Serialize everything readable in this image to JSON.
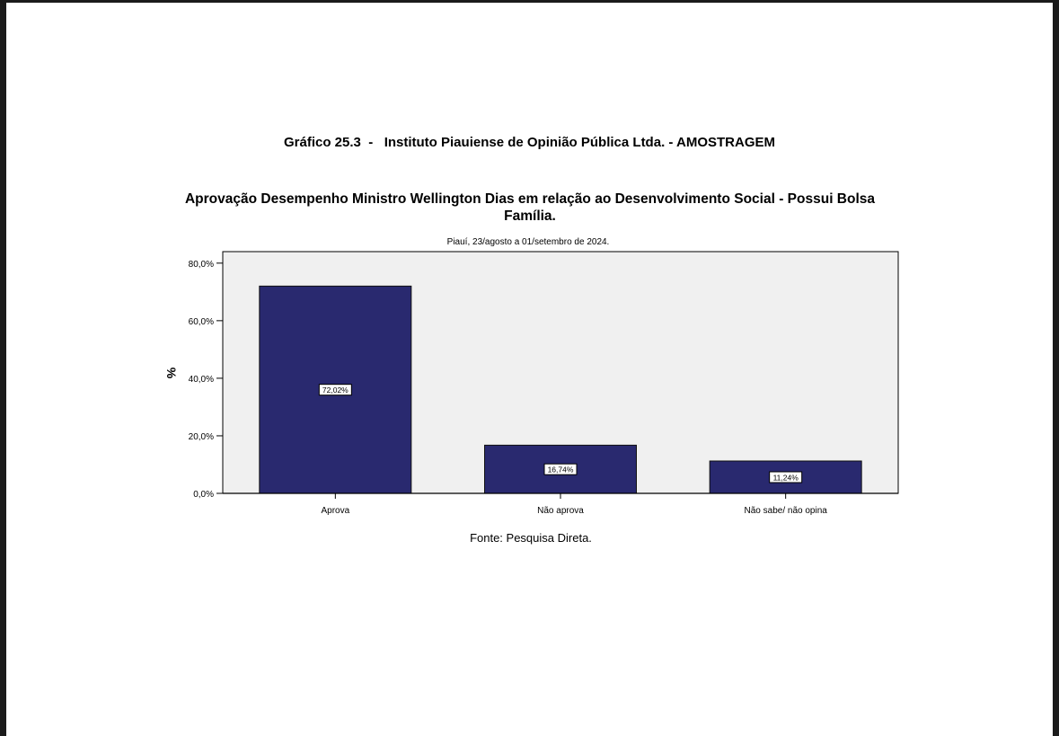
{
  "header": "Gráfico 25.3  -   Instituto Piauiense de Opinião Pública Ltda. - AMOSTRAGEM",
  "footer": "Fonte: Pesquisa Direta.",
  "chart_data": {
    "type": "bar",
    "title": "Aprovação Desempenho Ministro Wellington Dias em relação ao Desenvolvimento Social - Possui Bolsa Família.",
    "subtitle": "Piauí, 23/agosto a 01/setembro de 2024.",
    "xlabel": "",
    "ylabel": "%",
    "categories": [
      "Aprova",
      "Não aprova",
      "Não sabe/ não opina"
    ],
    "values": [
      72.02,
      16.74,
      11.24
    ],
    "data_labels": [
      "72,02%",
      "16,74%",
      "11,24%"
    ],
    "yticks": [
      0,
      20,
      40,
      60,
      80
    ],
    "ytick_labels": [
      "0,0%",
      "20,0%",
      "40,0%",
      "60,0%",
      "80,0%"
    ],
    "ylim": [
      0,
      84
    ],
    "grid": false,
    "colors": {
      "bar": "#29296f",
      "plot_bg": "#f0f0f0"
    }
  }
}
